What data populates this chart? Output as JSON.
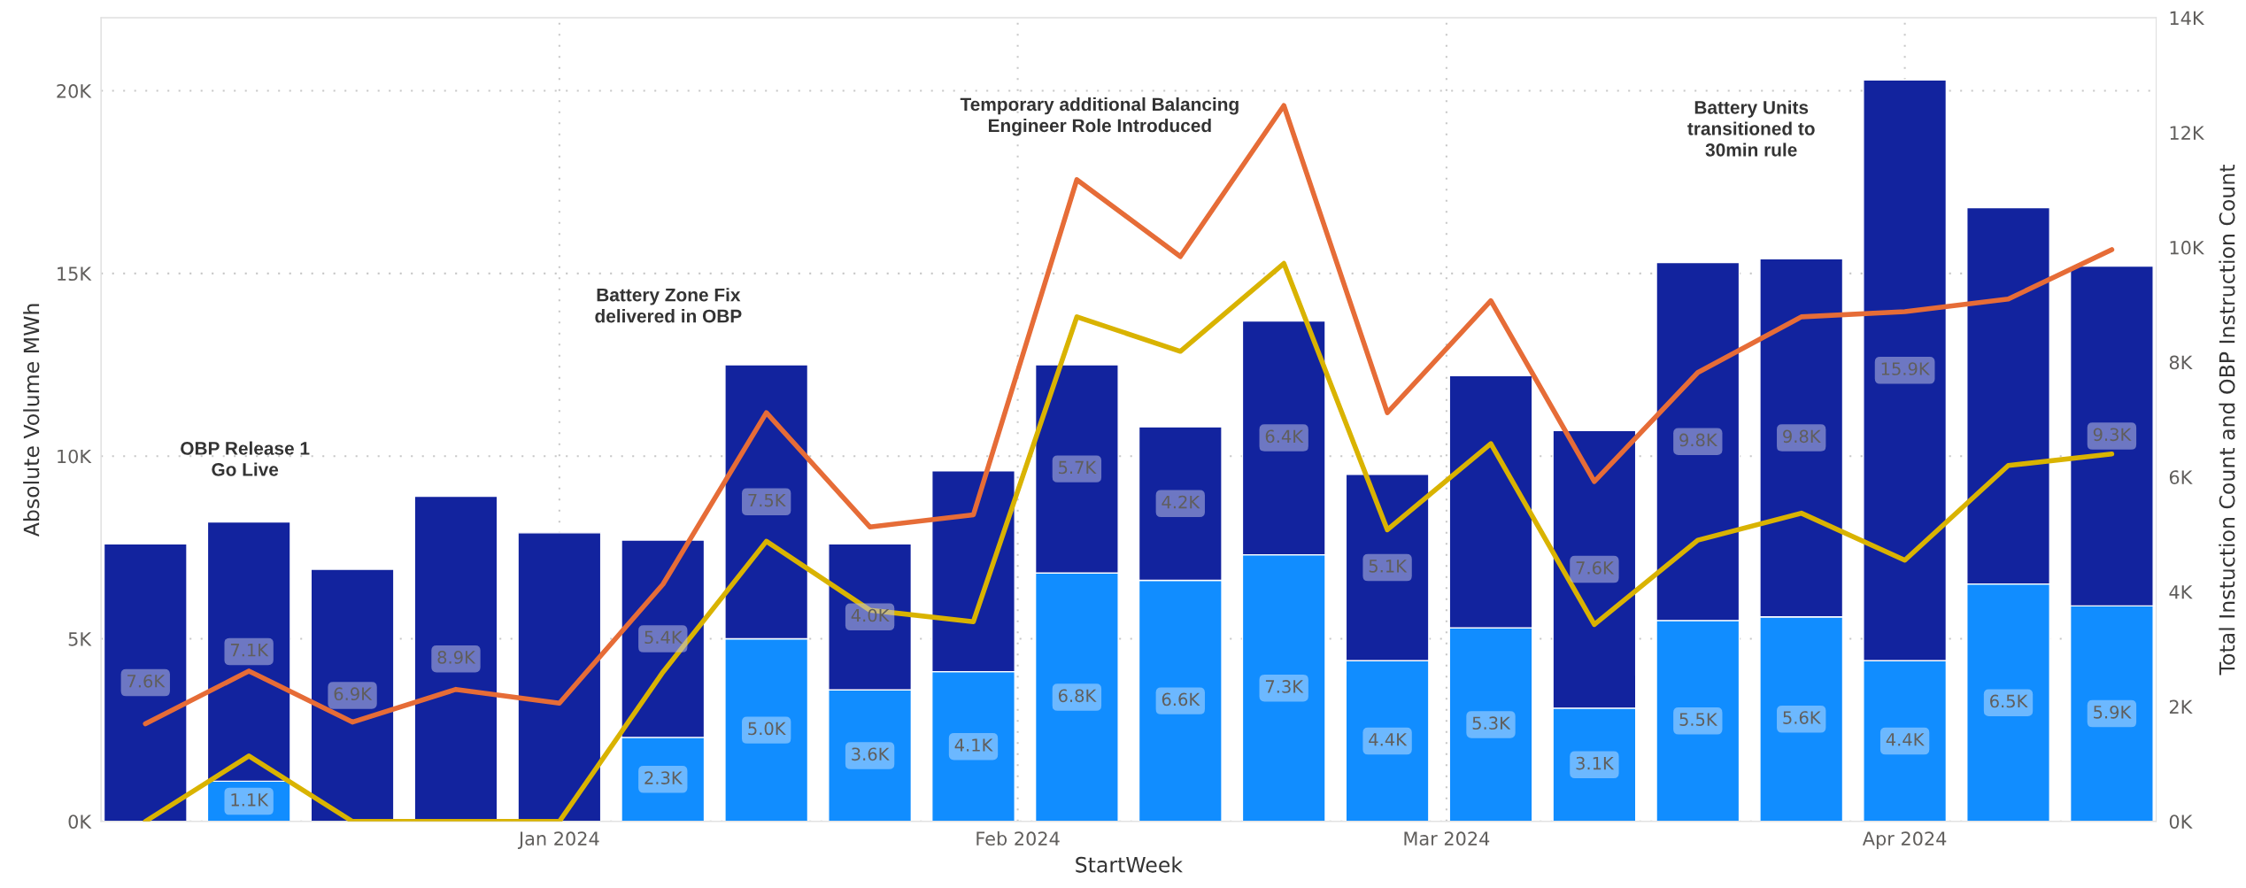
{
  "chart_data": {
    "type": "bar",
    "stacked": true,
    "xlabel": "StartWeek",
    "ylabel": "Absolute Volume MWh",
    "y2label": "Total Instuction Count and OBP Instruction Count",
    "x": [
      "2023-12-04",
      "2023-12-11",
      "2023-12-18",
      "2023-12-25",
      "2024-01-01",
      "2024-01-08",
      "2024-01-15",
      "2024-01-22",
      "2024-01-29",
      "2024-02-05",
      "2024-02-12",
      "2024-02-19",
      "2024-02-26",
      "2024-03-04",
      "2024-03-11",
      "2024-03-18",
      "2024-03-25",
      "2024-04-01",
      "2024-04-08",
      "2024-04-15"
    ],
    "series": [
      {
        "color": "#118dff",
        "values": [
          null,
          1100,
          null,
          null,
          null,
          2300,
          5000,
          3600,
          4100,
          6800,
          6600,
          7300,
          4400,
          5300,
          3100,
          5500,
          5600,
          4400,
          6500,
          5900
        ],
        "value_labels": [
          null,
          "1.1K",
          null,
          null,
          null,
          "2.3K",
          "5.0K",
          "3.6K",
          "4.1K",
          "6.8K",
          "6.6K",
          "7.3K",
          "4.4K",
          "5.3K",
          "3.1K",
          "5.5K",
          "5.6K",
          "4.4K",
          "6.5K",
          "5.9K"
        ]
      },
      {
        "color": "#12239e",
        "values": [
          7600,
          7100,
          6900,
          8900,
          7900,
          5400,
          7500,
          4000,
          5500,
          5700,
          4200,
          6400,
          5100,
          6900,
          7600,
          9800,
          9800,
          15900,
          10300,
          9300
        ],
        "value_labels": [
          "7.6K",
          "7.1K",
          "6.9K",
          "8.9K",
          null,
          "5.4K",
          "7.5K",
          "4.0K",
          null,
          "5.7K",
          "4.2K",
          "6.4K",
          "5.1K",
          null,
          "7.6K",
          "9.8K",
          "9.8K",
          "15.9K",
          null,
          "9.3K"
        ]
      },
      {
        "type": "line",
        "axis": "y2",
        "color": "#e66c37",
        "values": [
          1700,
          2620,
          1730,
          2300,
          2060,
          4130,
          7120,
          5130,
          5340,
          11180,
          9840,
          12470,
          7120,
          9070,
          5920,
          7820,
          8790,
          8880,
          9100,
          9960
        ]
      },
      {
        "type": "line",
        "axis": "y2",
        "color": "#d9b300",
        "values": [
          0,
          1140,
          0,
          0,
          0,
          2600,
          4880,
          3680,
          3480,
          8790,
          8190,
          9720,
          5080,
          6580,
          3430,
          4900,
          5370,
          4550,
          6200,
          6400
        ]
      }
    ],
    "xlim": [
      "2023-12-01",
      "2024-04-18"
    ],
    "xticks": [
      {
        "value": "2024-01-01",
        "label": "Jan 2024"
      },
      {
        "value": "2024-02-01",
        "label": "Feb 2024"
      },
      {
        "value": "2024-03-01",
        "label": "Mar 2024"
      },
      {
        "value": "2024-04-01",
        "label": "Apr 2024"
      }
    ],
    "ylim": [
      0,
      22000
    ],
    "yticks": [
      {
        "value": 0,
        "label": "0K"
      },
      {
        "value": 5000,
        "label": "5K"
      },
      {
        "value": 10000,
        "label": "10K"
      },
      {
        "value": 15000,
        "label": "15K"
      },
      {
        "value": 20000,
        "label": "20K"
      }
    ],
    "y2lim": [
      0,
      14000
    ],
    "y2ticks": [
      {
        "value": 0,
        "label": "0K"
      },
      {
        "value": 2000,
        "label": "2K"
      },
      {
        "value": 4000,
        "label": "4K"
      },
      {
        "value": 6000,
        "label": "6K"
      },
      {
        "value": 8000,
        "label": "8K"
      },
      {
        "value": 10000,
        "label": "10K"
      },
      {
        "value": 12000,
        "label": "12K"
      },
      {
        "value": 14000,
        "label": "14K"
      }
    ],
    "grid": true,
    "annotations": [
      "OBP Release 1\nGo Live",
      "Battery Zone Fix\ndelivered in OBP",
      "Temporary additional Balancing\nEngineer Role Introduced",
      "Battery Units\ntransitioned to\n30min rule"
    ]
  }
}
